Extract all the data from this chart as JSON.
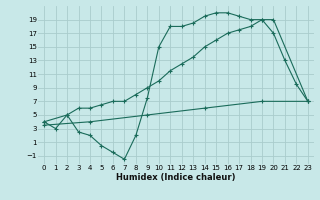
{
  "background_color": "#c8e8e8",
  "grid_color": "#aacccc",
  "line_color": "#1a6b5a",
  "xlabel": "Humidex (Indice chaleur)",
  "xlim": [
    -0.5,
    23.5
  ],
  "ylim": [
    -2.2,
    21.0
  ],
  "xticks": [
    0,
    1,
    2,
    3,
    4,
    5,
    6,
    7,
    8,
    9,
    10,
    11,
    12,
    13,
    14,
    15,
    16,
    17,
    18,
    19,
    20,
    21,
    22,
    23
  ],
  "yticks": [
    -1,
    1,
    3,
    5,
    7,
    9,
    11,
    13,
    15,
    17,
    19
  ],
  "line1_x": [
    0,
    1,
    2,
    3,
    4,
    5,
    6,
    7,
    8,
    9,
    10,
    11,
    12,
    13,
    14,
    15,
    16,
    17,
    18,
    19,
    20,
    21,
    22,
    23
  ],
  "line1_y": [
    4,
    3,
    5,
    2.5,
    2,
    0.5,
    -0.5,
    -1.5,
    2,
    7.5,
    15,
    18,
    18,
    18.5,
    19.5,
    20,
    20,
    19.5,
    19,
    19,
    17,
    13,
    9.5,
    7
  ],
  "line2_x": [
    0,
    2,
    3,
    4,
    5,
    6,
    7,
    8,
    9,
    10,
    11,
    12,
    13,
    14,
    15,
    16,
    17,
    18,
    19,
    20,
    23
  ],
  "line2_y": [
    4,
    5,
    6,
    6,
    6.5,
    7,
    7,
    8,
    9,
    10,
    11.5,
    12.5,
    13.5,
    15,
    16,
    17,
    17.5,
    18,
    19,
    19,
    7
  ],
  "line3_x": [
    0,
    4,
    9,
    14,
    19,
    23
  ],
  "line3_y": [
    3.5,
    4,
    5,
    6,
    7,
    7
  ]
}
